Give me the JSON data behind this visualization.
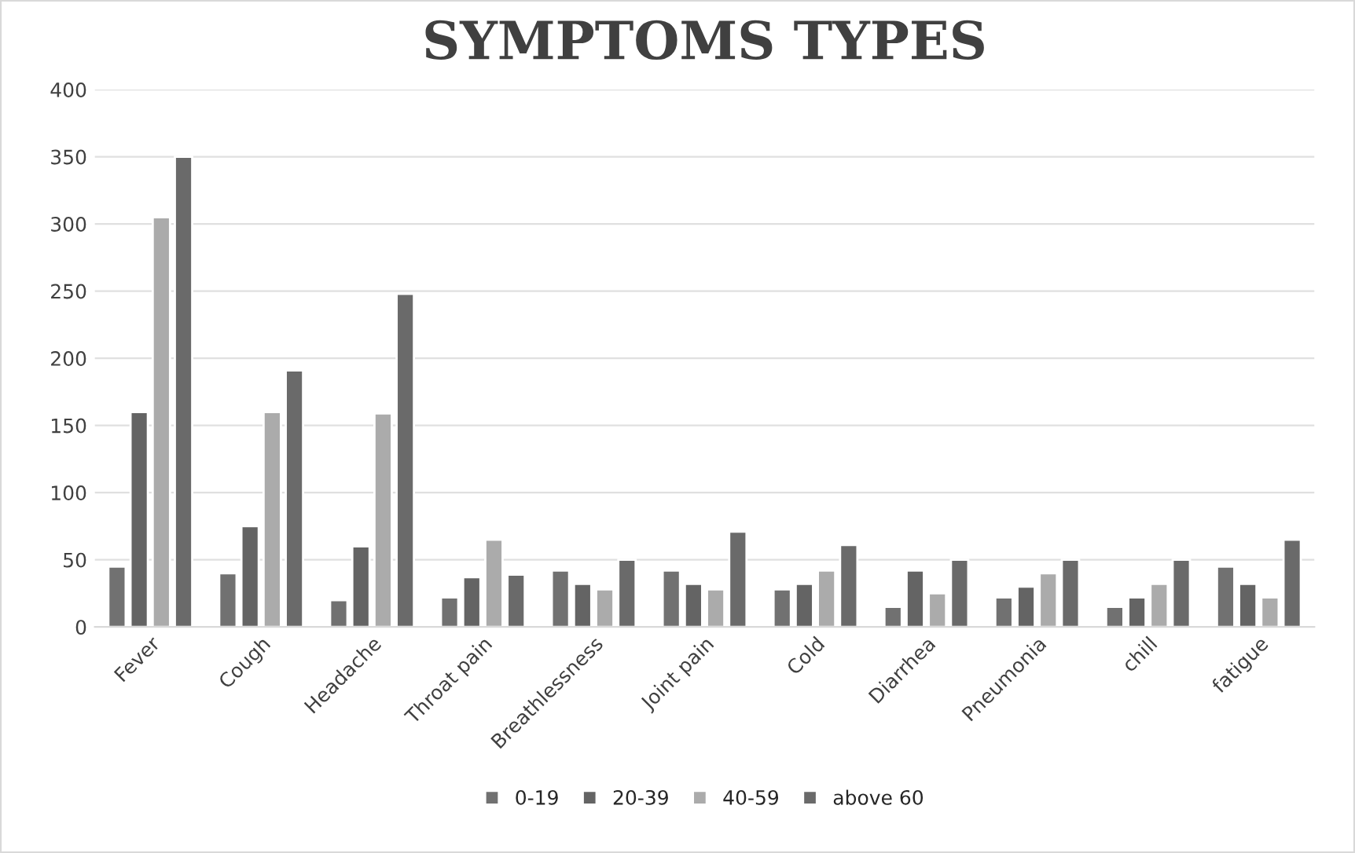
{
  "chart_data": {
    "type": "bar",
    "title": "SYMPTOMS TYPES",
    "categories": [
      "Fever",
      "Cough",
      "Headache",
      "Throat pain",
      "Breathlessness",
      "Joint pain",
      "Cold",
      "Diarrhea",
      "Pneumonia",
      "chill",
      "fatigue"
    ],
    "series": [
      {
        "name": "0-19",
        "color": "#717171",
        "values": [
          45,
          40,
          20,
          22,
          42,
          42,
          28,
          15,
          22,
          15,
          45
        ]
      },
      {
        "name": "20-39",
        "color": "#646464",
        "values": [
          160,
          75,
          60,
          37,
          32,
          32,
          32,
          42,
          30,
          22,
          32
        ]
      },
      {
        "name": "40-59",
        "color": "#ababab",
        "values": [
          305,
          160,
          159,
          65,
          28,
          28,
          42,
          25,
          40,
          32,
          22
        ]
      },
      {
        "name": "above 60",
        "color": "#6a6a6a",
        "values": [
          350,
          191,
          248,
          39,
          50,
          71,
          61,
          50,
          50,
          50,
          65
        ]
      }
    ],
    "ylim": [
      0,
      400
    ],
    "yticks": [
      0,
      50,
      100,
      150,
      200,
      250,
      300,
      350,
      400
    ],
    "grid": "y",
    "legend": "bottom"
  }
}
